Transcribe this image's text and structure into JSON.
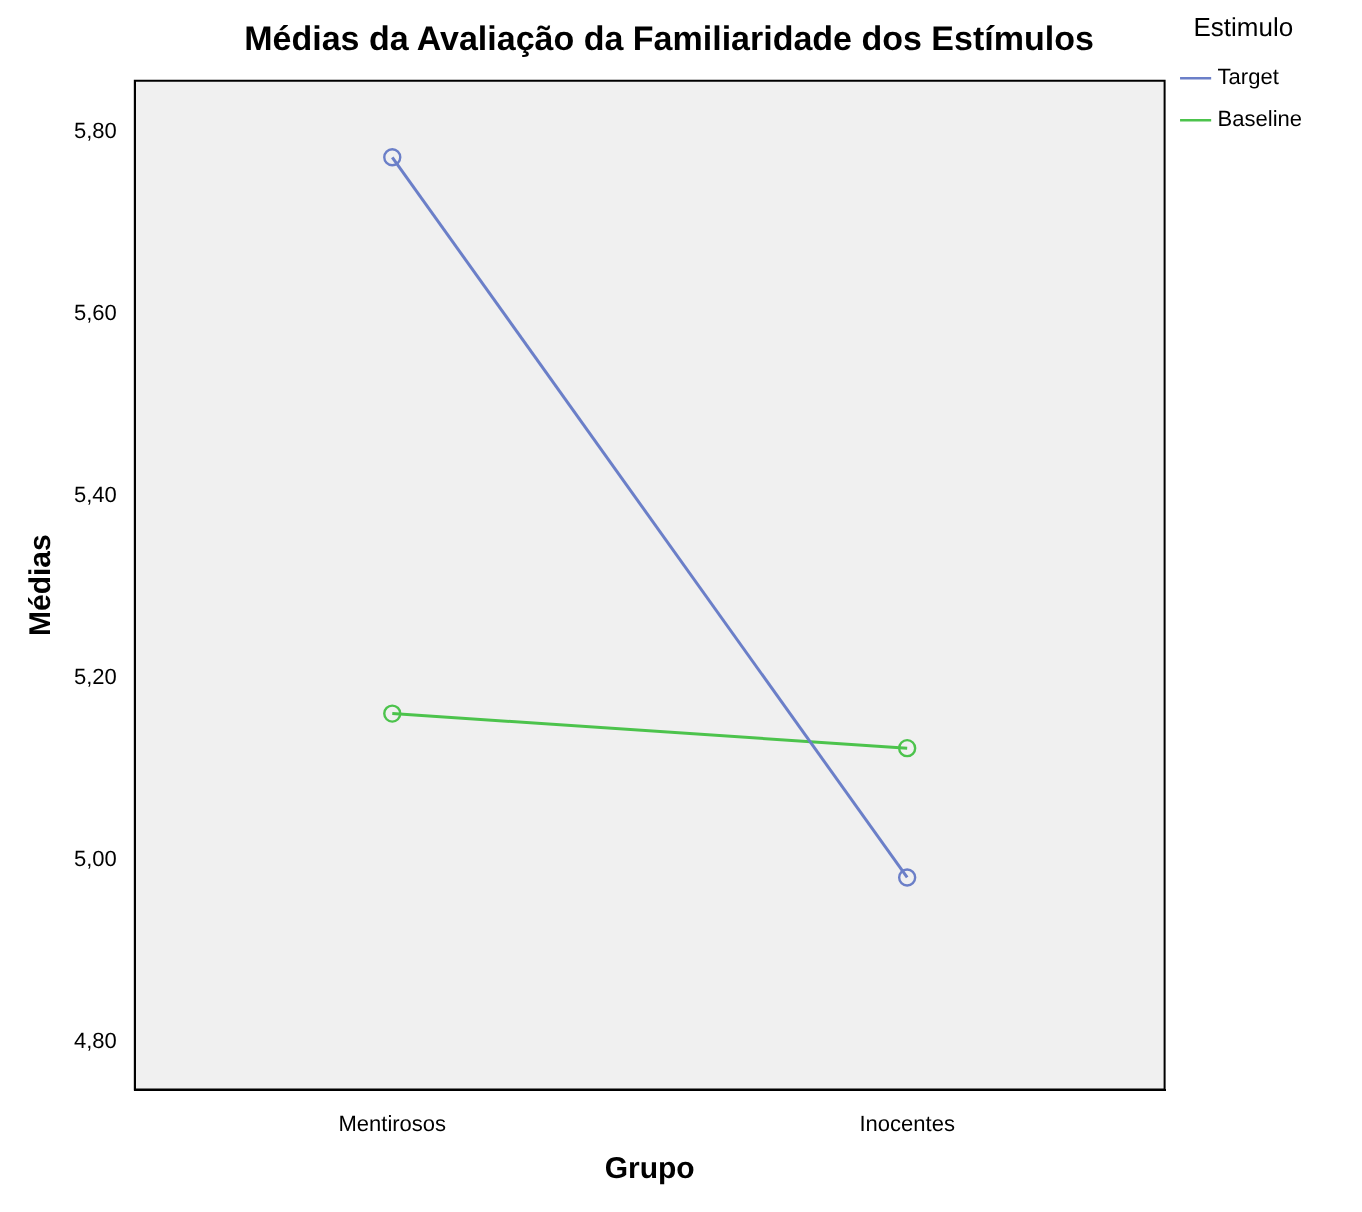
{
  "chart_data": {
    "type": "line",
    "title": "Médias da Avaliação da Familiaridade dos Estímulos",
    "xlabel": "Grupo",
    "ylabel": "Médias",
    "legend_title": "Estimulo",
    "categories": [
      "Mentirosos",
      "Inocentes"
    ],
    "series": [
      {
        "name": "Target",
        "color": "#6b7fc8",
        "values": [
          5.772,
          4.981
        ]
      },
      {
        "name": "Baseline",
        "color": "#4cc34c",
        "values": [
          5.161,
          5.123
        ]
      }
    ],
    "ylim": [
      4.748,
      5.856
    ],
    "yticks": [
      {
        "value": 4.8,
        "label": "4,80"
      },
      {
        "value": 5.0,
        "label": "5,00"
      },
      {
        "value": 5.2,
        "label": "5,20"
      },
      {
        "value": 5.4,
        "label": "5,40"
      },
      {
        "value": 5.6,
        "label": "5,60"
      },
      {
        "value": 5.8,
        "label": "5,80"
      }
    ],
    "grid": false,
    "legend": "top right",
    "marker": "circle",
    "line_style": "solid"
  }
}
